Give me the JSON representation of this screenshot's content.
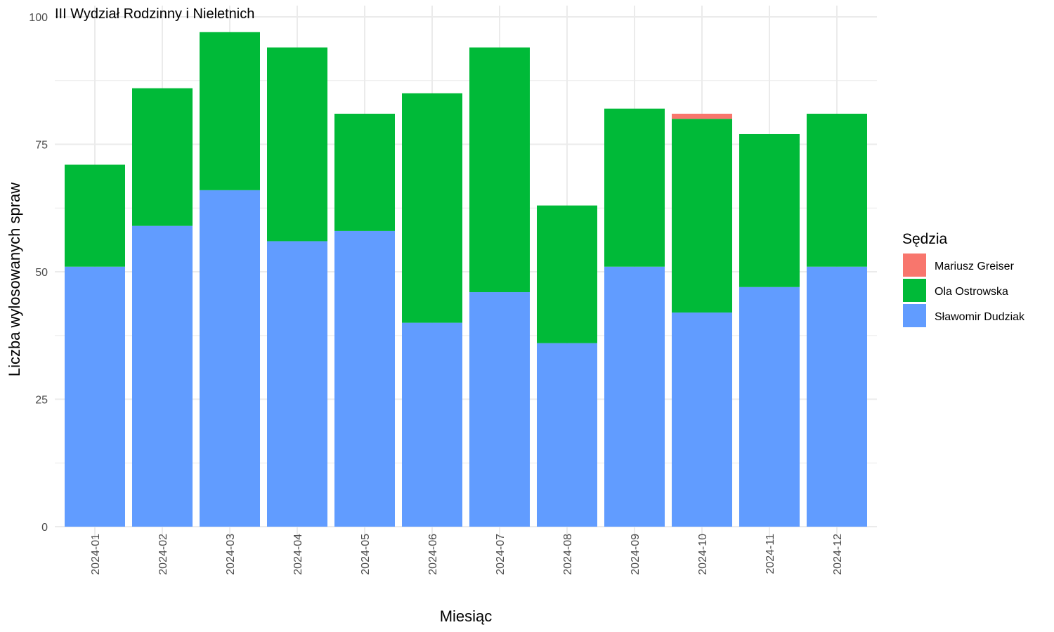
{
  "chart_data": {
    "type": "bar",
    "stacked": true,
    "title": "III Wydział Rodzinny i Nieletnich",
    "xlabel": "Miesiąc",
    "ylabel": "Liczba wylosowanych spraw",
    "ylim": [
      0,
      100
    ],
    "y_ticks": [
      0,
      25,
      50,
      75,
      100
    ],
    "grid": true,
    "legend": {
      "title": "Sędzia",
      "position": "right"
    },
    "categories": [
      "2024-01",
      "2024-02",
      "2024-03",
      "2024-04",
      "2024-05",
      "2024-06",
      "2024-07",
      "2024-08",
      "2024-09",
      "2024-10",
      "2024-11",
      "2024-12"
    ],
    "series": [
      {
        "name": "Mariusz Greiser",
        "color": "#F8766D",
        "values": [
          0,
          0,
          0,
          0,
          0,
          0,
          0,
          0,
          0,
          1,
          0,
          0
        ]
      },
      {
        "name": "Ola Ostrowska",
        "color": "#00BA38",
        "values": [
          20,
          27,
          31,
          38,
          23,
          45,
          48,
          27,
          31,
          38,
          30,
          30
        ]
      },
      {
        "name": "Sławomir Dudziak",
        "color": "#619CFF",
        "values": [
          51,
          59,
          66,
          56,
          58,
          40,
          46,
          36,
          51,
          42,
          47,
          51
        ]
      }
    ]
  }
}
